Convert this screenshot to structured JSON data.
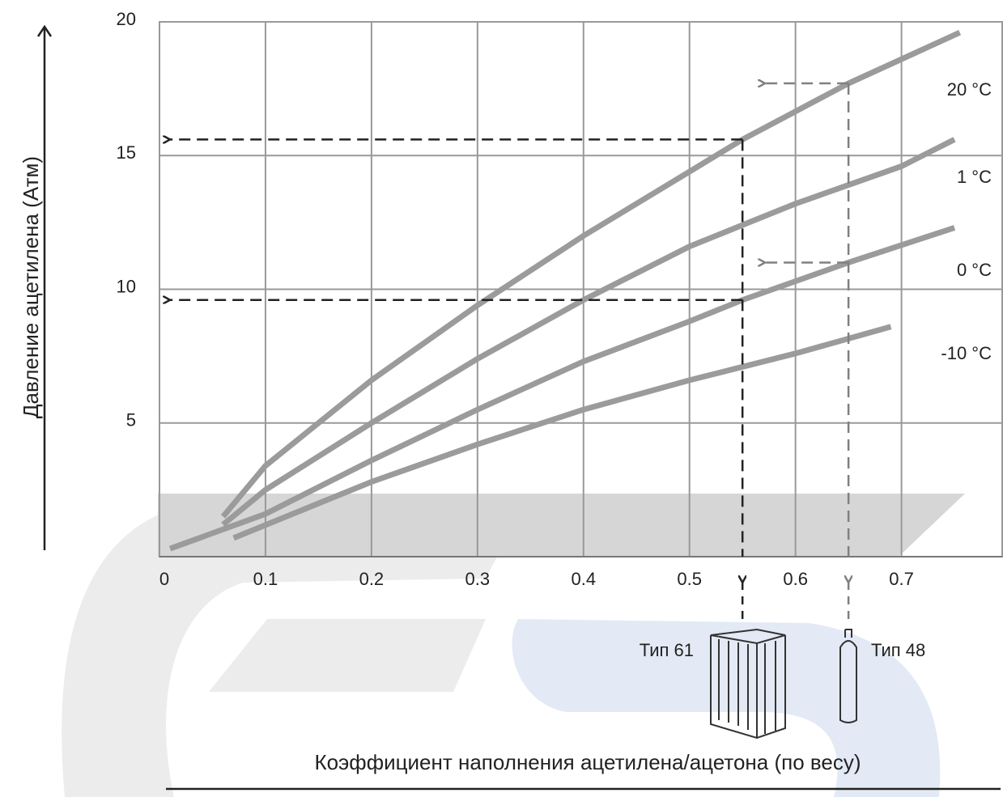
{
  "chart_data": {
    "type": "line",
    "y_label": "Давление ацетилена (Атм)",
    "x_label": "Коэффициент наполнения ацетилена/ацетона (по весу)",
    "xlim": [
      0,
      0.795
    ],
    "ylim": [
      0,
      20
    ],
    "xticks": [
      0,
      0.1,
      0.2,
      0.3,
      0.4,
      0.5,
      0.6,
      0.7
    ],
    "yticks": [
      5,
      10,
      15,
      20
    ],
    "grid": true,
    "series": [
      {
        "name": "20 °C",
        "color": "#9b9b9b",
        "x": [
          0.06,
          0.1,
          0.2,
          0.3,
          0.4,
          0.5,
          0.55,
          0.65,
          0.755
        ],
        "values": [
          1.5,
          3.4,
          6.6,
          9.4,
          12.0,
          14.4,
          15.6,
          17.7,
          19.6
        ]
      },
      {
        "name": "1 °C",
        "color": "#9b9b9b",
        "x": [
          0.06,
          0.1,
          0.2,
          0.3,
          0.4,
          0.5,
          0.55,
          0.6,
          0.7,
          0.75
        ],
        "values": [
          1.2,
          2.5,
          5.0,
          7.4,
          9.6,
          11.6,
          12.4,
          13.2,
          14.6,
          15.6
        ]
      },
      {
        "name": "0 °C",
        "color": "#9b9b9b",
        "x": [
          0.01,
          0.1,
          0.2,
          0.3,
          0.4,
          0.5,
          0.55,
          0.65,
          0.75
        ],
        "values": [
          0.3,
          1.6,
          3.6,
          5.5,
          7.3,
          8.8,
          9.6,
          11.0,
          12.3
        ]
      },
      {
        "name": "-10 °C",
        "color": "#9b9b9b",
        "x": [
          0.07,
          0.2,
          0.3,
          0.4,
          0.5,
          0.6,
          0.69
        ],
        "values": [
          0.7,
          2.8,
          4.2,
          5.5,
          6.6,
          7.6,
          8.6
        ]
      }
    ],
    "guides": [
      {
        "x": 0.55,
        "y": 15.6,
        "color": "#222222"
      },
      {
        "x": 0.55,
        "y": 9.6,
        "color": "#222222"
      },
      {
        "x": 0.65,
        "y": 17.7,
        "color": "#808080"
      },
      {
        "x": 0.65,
        "y": 11.0,
        "color": "#808080"
      }
    ],
    "annotations": [
      "Тип 61",
      "Тип 48"
    ]
  }
}
